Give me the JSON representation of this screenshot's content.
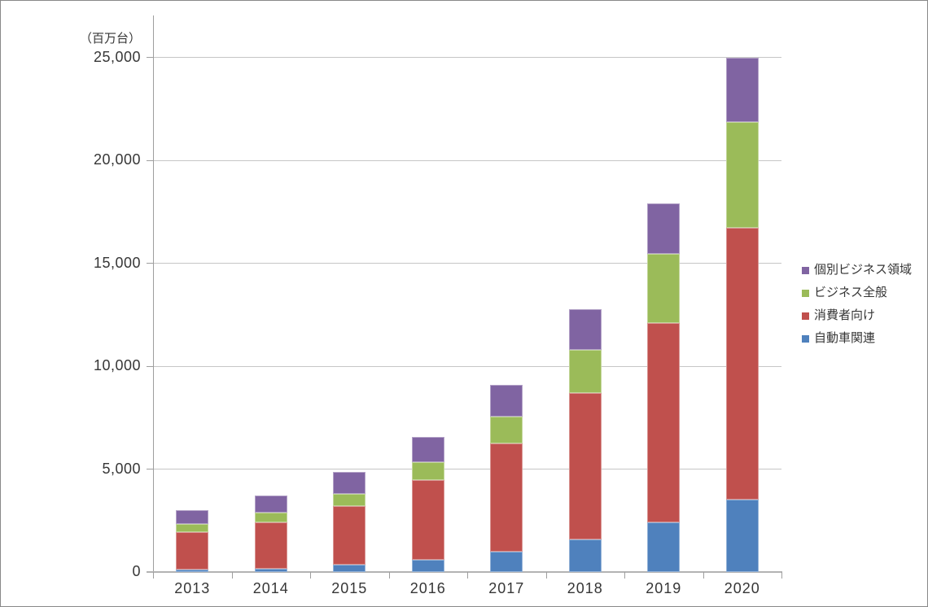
{
  "chart_data": {
    "type": "bar",
    "stacked": true,
    "title": "",
    "unit_label": "（百万台）",
    "categories": [
      "2013",
      "2014",
      "2015",
      "2016",
      "2017",
      "2018",
      "2019",
      "2020"
    ],
    "series": [
      {
        "name": "自動車関連",
        "color": "#4F81BD",
        "border_color": "#95B3D7",
        "values": [
          100,
          150,
          350,
          600,
          1000,
          1600,
          2400,
          3500
        ]
      },
      {
        "name": "消費者向け",
        "color": "#C0504D",
        "border_color": "#D99694",
        "values": [
          1850,
          2250,
          2850,
          3850,
          5250,
          7100,
          9700,
          13200
        ]
      },
      {
        "name": "ビジネス全般",
        "color": "#9BBB59",
        "border_color": "#C3D69B",
        "values": [
          400,
          500,
          600,
          900,
          1300,
          2100,
          3350,
          5150
        ]
      },
      {
        "name": "個別ビジネス領域",
        "color": "#8064A2",
        "border_color": "#B3A2C7",
        "values": [
          650,
          800,
          1050,
          1200,
          1550,
          1950,
          2450,
          3150
        ]
      }
    ],
    "totals": [
      3000,
      3700,
      4850,
      6550,
      9100,
      12750,
      17900,
      25000
    ],
    "y_axis": {
      "min": 0,
      "max": 25000,
      "step": 5000,
      "tick_labels": [
        "0",
        "5,000",
        "10,000",
        "15,000",
        "20,000",
        "25,000"
      ]
    },
    "x_axis": {
      "label": ""
    },
    "grid": "horizontal",
    "legend": {
      "position": "right",
      "items": [
        {
          "label": "個別ビジネス領域",
          "color": "#8064A2"
        },
        {
          "label": "ビジネス全般",
          "color": "#9BBB59"
        },
        {
          "label": "消費者向け",
          "color": "#C0504D"
        },
        {
          "label": "自動車関連",
          "color": "#4F81BD"
        }
      ]
    },
    "colors": {
      "gridline": "#c6c6c6",
      "axis": "#9e9e9e",
      "text": "#363636"
    }
  }
}
